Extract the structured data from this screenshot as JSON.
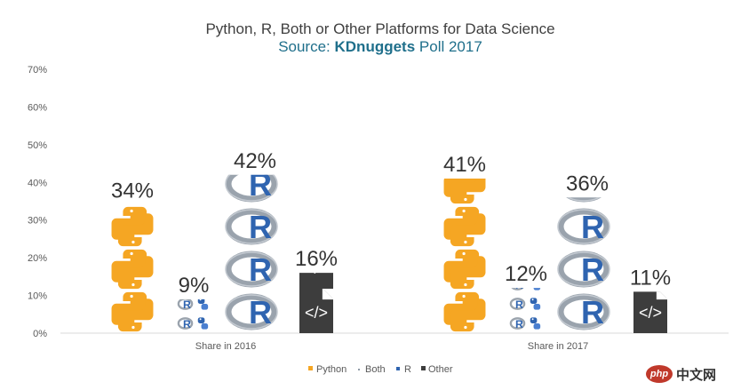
{
  "chart_data": {
    "type": "bar",
    "title": "Python, R, Both or Other Platforms for Data Science",
    "subtitle_prefix": "Source: ",
    "subtitle_brand": "KDnuggets",
    "subtitle_suffix": " Poll 2017",
    "categories": [
      "Share in 2016",
      "Share in 2017"
    ],
    "series": [
      {
        "name": "Python",
        "values": [
          34,
          41
        ],
        "labels": [
          "34%",
          "41%"
        ],
        "color": "#f5a623",
        "icon": "python-logo"
      },
      {
        "name": "Both",
        "values": [
          9,
          12
        ],
        "labels": [
          "9%",
          "12%"
        ],
        "color": "#8e9aa6",
        "icon": "r-python-logo"
      },
      {
        "name": "R",
        "values": [
          42,
          36
        ],
        "labels": [
          "42%",
          "36%"
        ],
        "color": "#2f64b0",
        "icon": "r-logo"
      },
      {
        "name": "Other",
        "values": [
          16,
          11
        ],
        "labels": [
          "16%",
          "11%"
        ],
        "color": "#3d3d3d",
        "icon": "code-file-icon"
      }
    ],
    "yticks": [
      "0%",
      "10%",
      "20%",
      "30%",
      "40%",
      "50%",
      "60%",
      "70%"
    ],
    "ylim": [
      0,
      70
    ],
    "legend_position": "bottom",
    "grid": false
  },
  "watermark": {
    "badge": "php",
    "text": "中文网"
  }
}
